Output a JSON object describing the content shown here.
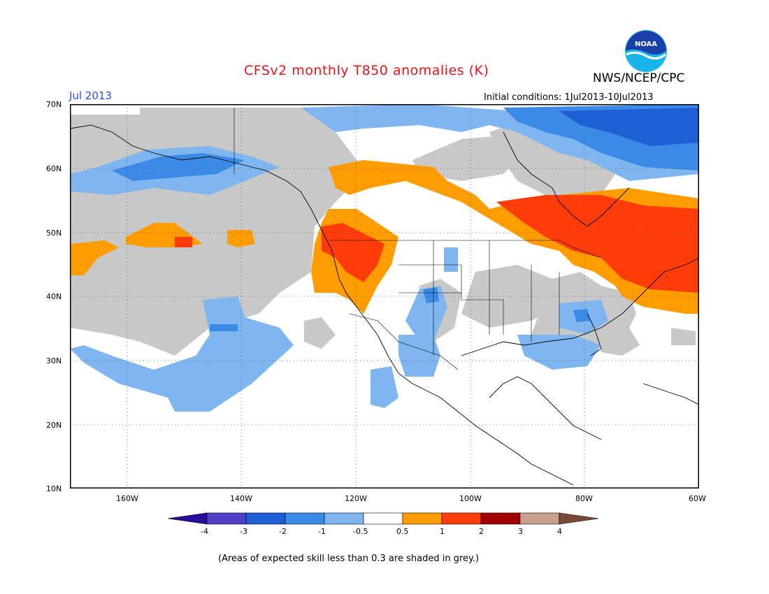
{
  "header": {
    "title": "CFSv2 monthly T850 anomalies (K)",
    "agency": "NWS/NCEP/CPC",
    "logo_text": "NOAA",
    "month_label": "Jul 2013",
    "initial_conditions": "Initial conditions: 1Jul2013-10Jul2013"
  },
  "map": {
    "lat_labels": [
      "70N",
      "60N",
      "50N",
      "40N",
      "30N",
      "20N",
      "10N"
    ],
    "lon_labels": [
      "160W",
      "140W",
      "120W",
      "100W",
      "80W",
      "60W"
    ],
    "grid": "dotted",
    "skill_mask_color": "#c8c8c8"
  },
  "colorbar": {
    "labels": [
      "-4",
      "-3",
      "-2",
      "-1",
      "-0.5",
      "0.5",
      "1",
      "2",
      "3",
      "4"
    ],
    "colors": [
      "#2a0c9a",
      "#5040c8",
      "#1f5fd6",
      "#3b8ae6",
      "#7fb6f0",
      "#ffffff",
      "#ff9c00",
      "#ff3c0a",
      "#a00000",
      "#c8a090",
      "#7a4a38"
    ]
  },
  "footnote": "(Areas of expected skill less than 0.3 are shaded in grey.)"
}
